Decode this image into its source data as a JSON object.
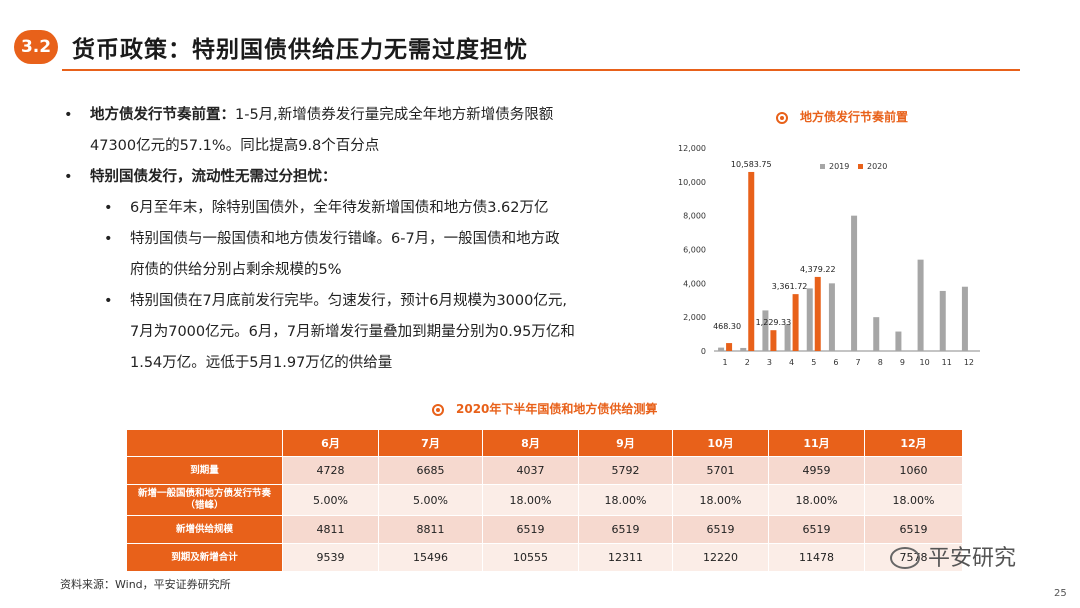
{
  "header": {
    "section_no": "3.2",
    "title": "货币政策：特别国债供给压力无需过度担忧"
  },
  "bullets": {
    "b1_bold": "地方债发行节奏前置：",
    "b1_line1": "1-5月,新增债券发行量完成全年地方新增债务限额",
    "b1_line2": "47300亿元的57.1%。同比提高9.8个百分点",
    "b2_bold": "特别国债发行，流动性无需过分担忧：",
    "s1": "6月至年末，除特别国债外，全年待发新增国债和地方债3.62万亿",
    "s2_line1": "特别国债与一般国债和地方债发行错峰。6-7月，一般国债和地方政",
    "s2_line2": "府债的供给分别占剩余规模的5%",
    "s3_line1": "特别国债在7月底前发行完毕。匀速发行，预计6月规模为3000亿元,",
    "s3_line2": "7月为7000亿元。6月，7月新增发行量叠加到期量分别为0.95万亿和",
    "s3_line3": "1.54万亿。远低于5月1.97万亿的供给量"
  },
  "chart_data": {
    "type": "bar",
    "title": "地方债发行节奏前置",
    "categories": [
      "1",
      "2",
      "3",
      "4",
      "5",
      "6",
      "7",
      "8",
      "9",
      "10",
      "11",
      "12"
    ],
    "series": [
      {
        "name": "2019",
        "color": "#A6A6A6",
        "values": [
          200,
          180,
          2400,
          1580,
          3700,
          4000,
          8000,
          2000,
          1150,
          5400,
          3550,
          3800
        ]
      },
      {
        "name": "2020",
        "color": "#E8611A",
        "values": [
          468.3,
          10583.75,
          1229.33,
          3361.72,
          4379.22,
          null,
          null,
          null,
          null,
          null,
          null,
          null
        ]
      }
    ],
    "data_labels": [
      "468.30",
      "10,583.75",
      "1,229.33",
      "3,361.72",
      "4,379.22"
    ],
    "yticks": [
      "0",
      "2,000",
      "4,000",
      "6,000",
      "8,000",
      "10,000",
      "12,000"
    ],
    "ylim": [
      0,
      12000
    ],
    "legend": "top-right",
    "grid": false
  },
  "table": {
    "title": "2020年下半年国债和地方债供给测算",
    "headers": [
      "",
      "6月",
      "7月",
      "8月",
      "9月",
      "10月",
      "11月",
      "12月"
    ],
    "rows": [
      {
        "label": "到期量",
        "values": [
          "4728",
          "6685",
          "4037",
          "5792",
          "5701",
          "4959",
          "1060"
        ]
      },
      {
        "label": "新增一般国债和地方债发行节奏（错峰）",
        "values": [
          "5.00%",
          "5.00%",
          "18.00%",
          "18.00%",
          "18.00%",
          "18.00%",
          "18.00%"
        ]
      },
      {
        "label": "新增供给规模",
        "values": [
          "4811",
          "8811",
          "6519",
          "6519",
          "6519",
          "6519",
          "6519"
        ]
      },
      {
        "label": "到期及新增合计",
        "values": [
          "9539",
          "15496",
          "10555",
          "12311",
          "12220",
          "11478",
          "7578"
        ]
      }
    ]
  },
  "footer": {
    "source": "资料来源：Wind，平安证券研究所",
    "page": "25",
    "watermark": "平安研究"
  },
  "colors": {
    "accent": "#E8611A",
    "series2019": "#A6A6A6"
  }
}
